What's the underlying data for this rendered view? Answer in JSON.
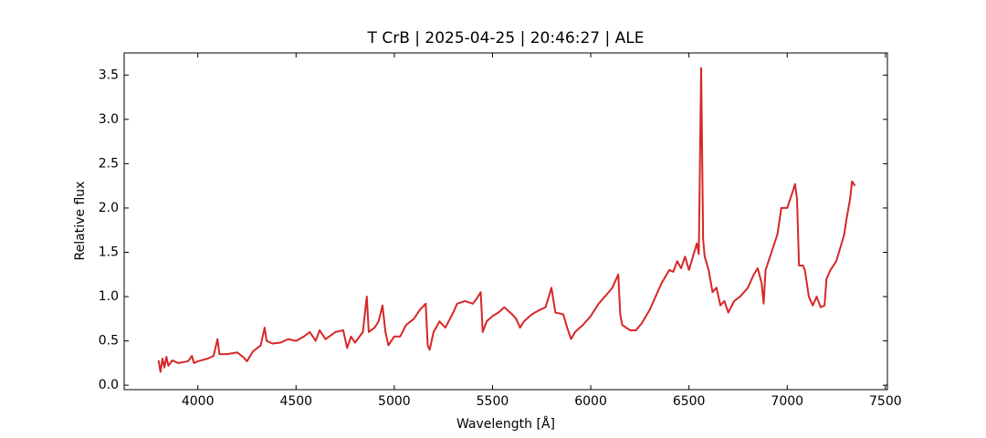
{
  "chart_data": {
    "type": "line",
    "title": "T CrB | 2025-04-25 | 20:46:27 | ALE",
    "x_label": "Wavelength [Å]",
    "y_label": "Relative flux",
    "xlim": [
      3625,
      7510
    ],
    "ylim": [
      -0.05,
      3.75
    ],
    "xticks": [
      4000,
      4500,
      5000,
      5500,
      6000,
      6500,
      7000,
      7500
    ],
    "yticks": [
      {
        "value": 0,
        "label": "0.0"
      },
      0.5,
      {
        "value": 1,
        "label": "1.0"
      },
      1.5,
      {
        "value": 2,
        "label": "2.0"
      },
      2.5,
      {
        "value": 3,
        "label": "3.0"
      },
      3.5
    ],
    "ticks_inside": true,
    "series": [
      {
        "color": "#d62728",
        "x": [
          3800,
          3810,
          3820,
          3830,
          3840,
          3850,
          3870,
          3900,
          3950,
          3970,
          3980,
          4000,
          4050,
          4080,
          4100,
          4110,
          4150,
          4200,
          4230,
          4250,
          4280,
          4320,
          4340,
          4350,
          4380,
          4420,
          4460,
          4500,
          4540,
          4570,
          4600,
          4620,
          4650,
          4700,
          4740,
          4760,
          4780,
          4800,
          4840,
          4860,
          4870,
          4900,
          4920,
          4940,
          4955,
          4970,
          5000,
          5030,
          5060,
          5100,
          5130,
          5160,
          5170,
          5180,
          5200,
          5230,
          5260,
          5300,
          5320,
          5360,
          5400,
          5420,
          5440,
          5450,
          5470,
          5500,
          5530,
          5560,
          5600,
          5620,
          5640,
          5660,
          5700,
          5740,
          5770,
          5800,
          5820,
          5860,
          5880,
          5900,
          5920,
          5960,
          6000,
          6040,
          6080,
          6110,
          6140,
          6150,
          6160,
          6200,
          6230,
          6260,
          6300,
          6340,
          6360,
          6400,
          6420,
          6440,
          6460,
          6480,
          6500,
          6520,
          6540,
          6550,
          6562,
          6572,
          6580,
          6600,
          6620,
          6640,
          6660,
          6680,
          6700,
          6730,
          6760,
          6800,
          6830,
          6850,
          6870,
          6880,
          6890,
          6920,
          6950,
          6970,
          7000,
          7030,
          7040,
          7050,
          7060,
          7080,
          7090,
          7110,
          7130,
          7150,
          7170,
          7190,
          7200,
          7220,
          7250,
          7270,
          7290,
          7300,
          7320,
          7330,
          7345
        ],
        "values": [
          0.28,
          0.15,
          0.3,
          0.2,
          0.32,
          0.22,
          0.28,
          0.25,
          0.27,
          0.33,
          0.25,
          0.27,
          0.3,
          0.33,
          0.52,
          0.35,
          0.35,
          0.37,
          0.32,
          0.27,
          0.38,
          0.45,
          0.65,
          0.5,
          0.47,
          0.48,
          0.52,
          0.5,
          0.55,
          0.6,
          0.5,
          0.62,
          0.52,
          0.6,
          0.62,
          0.42,
          0.55,
          0.48,
          0.6,
          1.0,
          0.6,
          0.65,
          0.72,
          0.9,
          0.6,
          0.45,
          0.55,
          0.55,
          0.68,
          0.75,
          0.85,
          0.92,
          0.45,
          0.4,
          0.6,
          0.72,
          0.65,
          0.82,
          0.92,
          0.95,
          0.92,
          0.98,
          1.05,
          0.6,
          0.72,
          0.78,
          0.82,
          0.88,
          0.8,
          0.75,
          0.65,
          0.72,
          0.8,
          0.85,
          0.88,
          1.1,
          0.82,
          0.8,
          0.65,
          0.52,
          0.6,
          0.68,
          0.78,
          0.92,
          1.02,
          1.1,
          1.25,
          0.8,
          0.68,
          0.62,
          0.62,
          0.7,
          0.85,
          1.05,
          1.15,
          1.3,
          1.28,
          1.4,
          1.32,
          1.45,
          1.3,
          1.45,
          1.6,
          1.48,
          3.58,
          1.65,
          1.45,
          1.3,
          1.05,
          1.1,
          0.9,
          0.95,
          0.82,
          0.95,
          1.0,
          1.1,
          1.25,
          1.32,
          1.15,
          0.92,
          1.3,
          1.5,
          1.7,
          2.0,
          2.0,
          2.2,
          2.27,
          2.1,
          1.35,
          1.35,
          1.3,
          1.0,
          0.9,
          1.0,
          0.88,
          0.9,
          1.2,
          1.3,
          1.4,
          1.55,
          1.7,
          1.85,
          2.1,
          2.3,
          2.25
        ]
      }
    ]
  }
}
